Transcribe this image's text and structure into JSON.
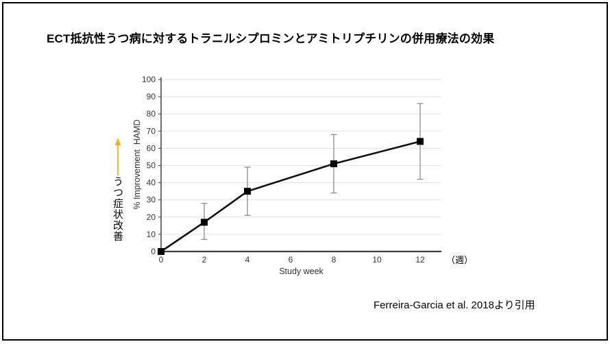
{
  "title": "ECT抵抗性うつ病に対するトラニルシプロミンとアミトリプチリンの併用療法の効果",
  "citation": "Ferreira-Garcia et al. 2018より引用",
  "annotation": {
    "vertical_label": "うつ症状改善",
    "arrow_color": "#FFB300"
  },
  "frame": {
    "border_color": "#000000",
    "background_color": "#ffffff"
  },
  "chart_data": {
    "type": "line",
    "x": [
      0,
      2,
      4,
      8,
      12
    ],
    "values": [
      0,
      17,
      35,
      51,
      64
    ],
    "error_low": [
      null,
      7,
      21,
      34,
      42
    ],
    "error_high": [
      null,
      28,
      49,
      68,
      86
    ],
    "xticks": [
      0,
      2,
      4,
      6,
      8,
      10,
      12
    ],
    "yticks": [
      0,
      10,
      20,
      30,
      40,
      50,
      60,
      70,
      80,
      90,
      100
    ],
    "xlim": [
      0,
      13
    ],
    "ylim": [
      0,
      100
    ],
    "xlabel": "Study week",
    "x_unit_label": "（週）",
    "ylabel": "% Improvement  HAMD",
    "grid": "horizontal",
    "legend": "none",
    "marker": "square",
    "line_color": "#111111",
    "marker_color": "#000000",
    "error_bar_color": "#8f8f8f",
    "gridline_color": "#e2e2e2",
    "axis_color": "#3d3d3d",
    "tick_label_color": "#333333"
  }
}
